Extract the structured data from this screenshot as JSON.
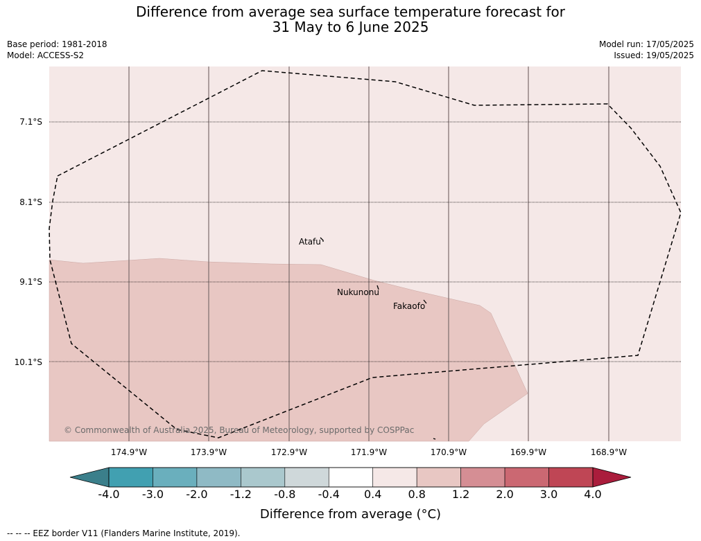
{
  "title": {
    "line1": "Difference from average sea surface temperature forecast for",
    "line2": "31 May to 6 June 2025"
  },
  "meta": {
    "base_period": "Base period: 1981-2018",
    "model": "Model: ACCESS-S2",
    "model_run": "Model run: 17/05/2025",
    "issued": "Issued: 19/05/2025"
  },
  "map": {
    "latitudes": [
      "7.1°S",
      "8.1°S",
      "9.1°S",
      "10.1°S"
    ],
    "longitudes": [
      "174.9°W",
      "173.9°W",
      "172.9°W",
      "171.9°W",
      "170.9°W",
      "169.9°W",
      "168.9°W"
    ],
    "places": [
      "Atafu",
      "Nukunonu",
      "Fakaofo"
    ],
    "copyright": "© Commonwealth of Australia 2025, Bureau of Meteorology, supported by COSPPac",
    "fill_background_color": "#f5e8e7",
    "fill_anomaly_color": "#e8c7c3",
    "background_anomaly_range": "0.4 to 0.8",
    "region_anomaly_range": "0.8 to 1.2"
  },
  "colorbar": {
    "title": "Difference from average (°C)",
    "ticks": [
      "-4.0",
      "-3.0",
      "-2.0",
      "-1.2",
      "-0.8",
      "-0.4",
      "0.4",
      "0.8",
      "1.2",
      "2.0",
      "3.0",
      "4.0"
    ],
    "colors": [
      "#41a0b1",
      "#6aafbd",
      "#8fbac5",
      "#aac8cd",
      "#cfd8da",
      "#ffffff",
      "#f5e8e7",
      "#e8c7c3",
      "#d58e94",
      "#cb6872",
      "#bf4655"
    ],
    "under_color": "#3b7f8b",
    "over_color": "#aa1d3c"
  },
  "footer": "--  --  -- EEZ border V11 (Flanders Marine Institute, 2019)."
}
